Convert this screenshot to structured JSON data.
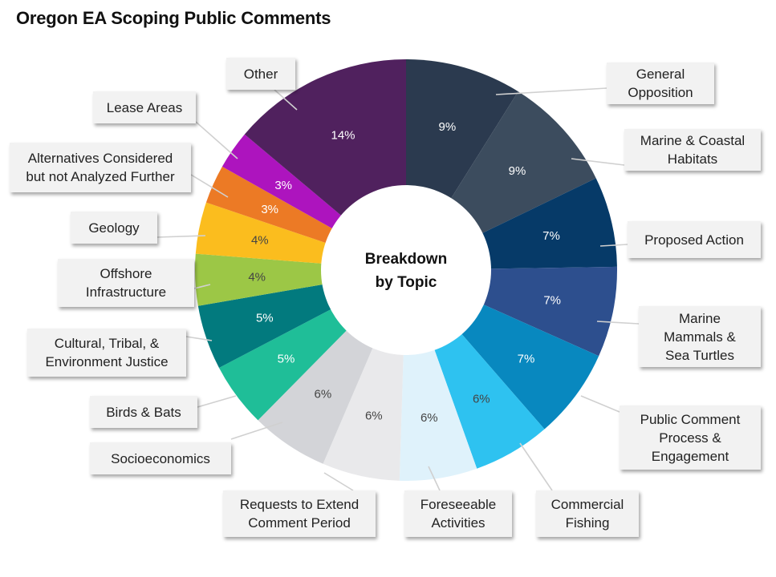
{
  "chart_data": {
    "type": "pie",
    "title": "Oregon EA Scoping Public Comments",
    "center_label": [
      "Breakdown",
      "by Topic"
    ],
    "slices": [
      {
        "label": "General\nOpposition",
        "value": 9,
        "display": "9%",
        "color": "#2b3a4f"
      },
      {
        "label": "Marine & Coastal\nHabitats",
        "value": 9,
        "display": "9%",
        "color": "#3c4c5e"
      },
      {
        "label": "Proposed Action",
        "value": 7,
        "display": "7%",
        "color": "#063a68"
      },
      {
        "label": "Marine\nMammals &\nSea Turtles",
        "value": 7,
        "display": "7%",
        "color": "#2d4f8e"
      },
      {
        "label": "Public Comment\nProcess &\nEngagement",
        "value": 7,
        "display": "7%",
        "color": "#0888bf"
      },
      {
        "label": "Commercial\nFishing",
        "value": 6,
        "display": "6%",
        "color": "#2ec2f0"
      },
      {
        "label": "Foreseeable\nActivities",
        "value": 6,
        "display": "6%",
        "color": "#dff2fb"
      },
      {
        "label": "Requests to Extend\nComment Period",
        "value": 6,
        "display": "6%",
        "color": "#e9e9eb"
      },
      {
        "label": "Socioeconomics",
        "value": 6,
        "display": "6%",
        "color": "#d3d4d8"
      },
      {
        "label": "Birds & Bats",
        "value": 5,
        "display": "5%",
        "color": "#1fbe98"
      },
      {
        "label": "Cultural, Tribal, &\nEnvironment Justice",
        "value": 5,
        "display": "5%",
        "color": "#027a7e"
      },
      {
        "label": "Offshore\nInfrastructure",
        "value": 4,
        "display": "4%",
        "color": "#9cc746"
      },
      {
        "label": "Geology",
        "value": 4,
        "display": "4%",
        "color": "#fbbd1e"
      },
      {
        "label": "Alternatives Considered\nbut not Analyzed Further",
        "value": 3,
        "display": "3%",
        "color": "#ec7a25"
      },
      {
        "label": "Lease Areas",
        "value": 3,
        "display": "3%",
        "color": "#ad14be"
      },
      {
        "label": "Other",
        "value": 14,
        "display": "14%",
        "color": "#50215e"
      }
    ]
  }
}
